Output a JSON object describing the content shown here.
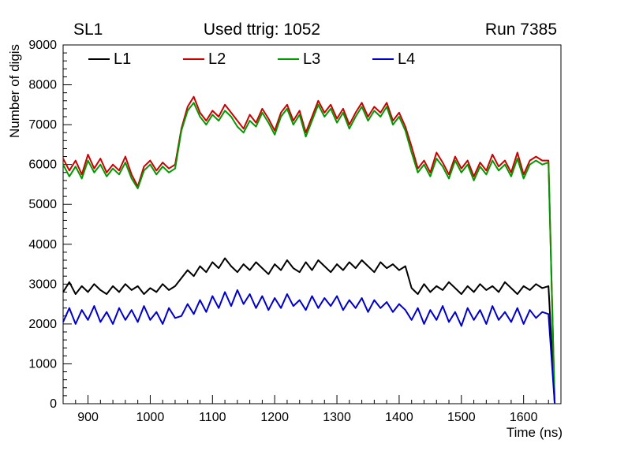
{
  "header": {
    "left": "SL1",
    "center": "Used ttrig: 1052",
    "right": "Run 7385"
  },
  "chart_data": {
    "type": "line",
    "title": "",
    "xlabel": "Time (ns)",
    "ylabel": "Number of digis",
    "xlim": [
      860,
      1660
    ],
    "ylim": [
      0,
      9000
    ],
    "x_ticks": [
      900,
      1000,
      1100,
      1200,
      1300,
      1400,
      1500,
      1600
    ],
    "y_ticks": [
      0,
      1000,
      2000,
      3000,
      4000,
      5000,
      6000,
      7000,
      8000,
      9000
    ],
    "x_minor_step": 20,
    "y_minor_step": 200,
    "grid": false,
    "legend_position": "top-inside-horizontal",
    "x": [
      860,
      870,
      880,
      890,
      900,
      910,
      920,
      930,
      940,
      950,
      960,
      970,
      980,
      990,
      1000,
      1010,
      1020,
      1030,
      1040,
      1050,
      1060,
      1070,
      1080,
      1090,
      1100,
      1110,
      1120,
      1130,
      1140,
      1150,
      1160,
      1170,
      1180,
      1190,
      1200,
      1210,
      1220,
      1230,
      1240,
      1250,
      1260,
      1270,
      1280,
      1290,
      1300,
      1310,
      1320,
      1330,
      1340,
      1350,
      1360,
      1370,
      1380,
      1390,
      1400,
      1410,
      1420,
      1430,
      1440,
      1450,
      1460,
      1470,
      1480,
      1490,
      1500,
      1510,
      1520,
      1530,
      1540,
      1550,
      1560,
      1570,
      1580,
      1590,
      1600,
      1610,
      1620,
      1630,
      1640,
      1650
    ],
    "series": [
      {
        "name": "L1",
        "color": "#000000",
        "values": [
          2800,
          3050,
          2750,
          2950,
          2800,
          3000,
          2850,
          2750,
          2950,
          2800,
          3000,
          2850,
          2950,
          2750,
          2900,
          2800,
          3000,
          2850,
          2950,
          3150,
          3350,
          3200,
          3450,
          3300,
          3550,
          3400,
          3650,
          3450,
          3300,
          3500,
          3350,
          3550,
          3400,
          3250,
          3500,
          3350,
          3600,
          3400,
          3300,
          3550,
          3350,
          3600,
          3450,
          3300,
          3500,
          3350,
          3550,
          3400,
          3600,
          3450,
          3300,
          3550,
          3400,
          3500,
          3350,
          3450,
          2900,
          2750,
          3000,
          2800,
          2950,
          2850,
          3050,
          2900,
          2750,
          2950,
          2800,
          3000,
          2850,
          2950,
          2800,
          3050,
          2900,
          2750,
          2950,
          2850,
          3000,
          2900,
          2950,
          0
        ]
      },
      {
        "name": "L2",
        "color": "#cc0000",
        "values": [
          6150,
          5850,
          6100,
          5750,
          6250,
          5900,
          6150,
          5800,
          6000,
          5850,
          6200,
          5750,
          5450,
          5950,
          6100,
          5850,
          6050,
          5900,
          6000,
          6900,
          7450,
          7700,
          7300,
          7100,
          7350,
          7200,
          7500,
          7300,
          7100,
          6900,
          7250,
          7050,
          7400,
          7150,
          6850,
          7300,
          7500,
          7100,
          7350,
          6800,
          7200,
          7600,
          7300,
          7500,
          7150,
          7400,
          7000,
          7300,
          7550,
          7200,
          7450,
          7300,
          7550,
          7100,
          7300,
          6950,
          6450,
          5900,
          6100,
          5800,
          6300,
          6050,
          5750,
          6200,
          5900,
          6100,
          5700,
          6050,
          5850,
          6250,
          5950,
          6100,
          5800,
          6300,
          5750,
          6100,
          6200,
          6100,
          6100,
          0
        ]
      },
      {
        "name": "L3",
        "color": "#009900",
        "values": [
          6000,
          5700,
          5950,
          5650,
          6100,
          5800,
          6000,
          5700,
          5900,
          5750,
          6050,
          5650,
          5400,
          5850,
          6000,
          5750,
          5950,
          5800,
          5900,
          6850,
          7350,
          7550,
          7200,
          7000,
          7250,
          7100,
          7350,
          7200,
          6950,
          6800,
          7100,
          6950,
          7300,
          7050,
          6750,
          7200,
          7400,
          7000,
          7250,
          6700,
          7100,
          7500,
          7200,
          7400,
          7050,
          7300,
          6900,
          7200,
          7450,
          7100,
          7350,
          7200,
          7450,
          7000,
          7200,
          6850,
          6300,
          5800,
          6000,
          5700,
          6150,
          5950,
          5650,
          6100,
          5800,
          6000,
          5600,
          5950,
          5750,
          6100,
          5850,
          6000,
          5700,
          6150,
          5650,
          6000,
          6100,
          6000,
          6050,
          0
        ]
      },
      {
        "name": "L4",
        "color": "#0000cc",
        "values": [
          2050,
          2400,
          2000,
          2350,
          2100,
          2450,
          2050,
          2300,
          2000,
          2400,
          2100,
          2350,
          2050,
          2450,
          2100,
          2300,
          2000,
          2400,
          2150,
          2200,
          2500,
          2250,
          2600,
          2300,
          2700,
          2400,
          2800,
          2450,
          2850,
          2500,
          2750,
          2400,
          2700,
          2350,
          2650,
          2400,
          2750,
          2450,
          2600,
          2350,
          2700,
          2400,
          2650,
          2450,
          2700,
          2350,
          2600,
          2400,
          2650,
          2300,
          2600,
          2400,
          2550,
          2300,
          2500,
          2350,
          2100,
          2400,
          2000,
          2350,
          2100,
          2450,
          2050,
          2300,
          1950,
          2400,
          2100,
          2350,
          2000,
          2450,
          2100,
          2300,
          2050,
          2400,
          2000,
          2350,
          2150,
          2300,
          2250,
          0
        ]
      }
    ]
  }
}
